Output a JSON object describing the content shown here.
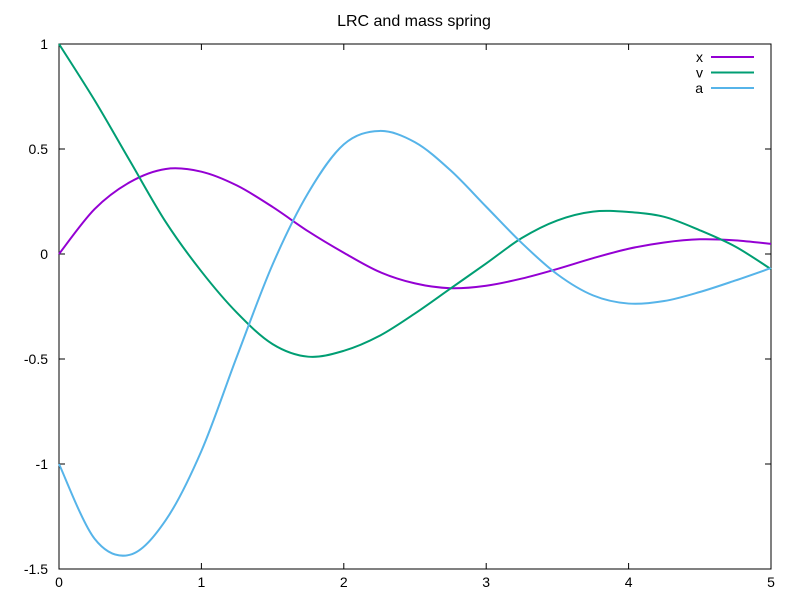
{
  "chart_data": {
    "type": "line",
    "title": "LRC and mass spring",
    "xlabel": "",
    "ylabel": "",
    "xlim": [
      0,
      5
    ],
    "ylim": [
      -1.5,
      1
    ],
    "xticks": [
      {
        "value": 0,
        "label": "0"
      },
      {
        "value": 1,
        "label": "1"
      },
      {
        "value": 2,
        "label": "2"
      },
      {
        "value": 3,
        "label": "3"
      },
      {
        "value": 4,
        "label": "4"
      },
      {
        "value": 5,
        "label": "5"
      }
    ],
    "yticks": [
      {
        "value": -1.5,
        "label": "-1.5"
      },
      {
        "value": -1,
        "label": "-1"
      },
      {
        "value": -0.5,
        "label": "-0.5"
      },
      {
        "value": 0,
        "label": "0"
      },
      {
        "value": 0.5,
        "label": "0.5"
      },
      {
        "value": 1,
        "label": "1"
      }
    ],
    "grid": false,
    "legend_position": "top-right",
    "x": [
      0,
      0.25,
      0.5,
      0.75,
      1,
      1.25,
      1.5,
      1.75,
      2,
      2.25,
      2.5,
      2.75,
      3,
      3.25,
      3.5,
      3.75,
      4,
      4.25,
      4.5,
      4.75,
      5
    ],
    "series": [
      {
        "name": "x",
        "color": "#9400d3",
        "values": [
          0,
          0.214,
          0.343,
          0.405,
          0.392,
          0.326,
          0.224,
          0.108,
          0.006,
          -0.085,
          -0.14,
          -0.163,
          -0.151,
          -0.117,
          -0.071,
          -0.02,
          0.025,
          0.055,
          0.07,
          0.065,
          0.048
        ]
      },
      {
        "name": "v",
        "color": "#009e73",
        "values": [
          1,
          0.732,
          0.441,
          0.152,
          -0.083,
          -0.28,
          -0.429,
          -0.489,
          -0.461,
          -0.39,
          -0.283,
          -0.164,
          -0.045,
          0.076,
          0.16,
          0.202,
          0.2,
          0.177,
          0.113,
          0.035,
          -0.072
        ]
      },
      {
        "name": "a",
        "color": "#56b4e9",
        "values": [
          -1,
          -1.356,
          -1.432,
          -1.267,
          -0.938,
          -0.487,
          -0.05,
          0.291,
          0.522,
          0.586,
          0.532,
          0.398,
          0.225,
          0.052,
          -0.097,
          -0.197,
          -0.236,
          -0.224,
          -0.181,
          -0.126,
          -0.067
        ]
      }
    ]
  }
}
